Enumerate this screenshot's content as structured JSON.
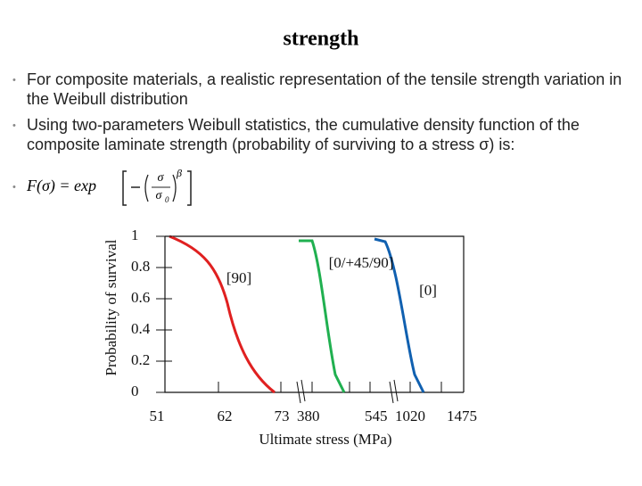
{
  "title": "strength",
  "bullets": [
    [
      "For composite materials, a realistic representation of the tensile strength variation in",
      "the Weibull distribution"
    ],
    [
      "Using two-parameters Weibull statistics, the cumulative density function of the",
      "composite laminate strength (probability of surviving to a stress σ) is:"
    ]
  ],
  "formula": {
    "lhs": "F(σ) = exp",
    "numerator": "σ",
    "denominator": "σ",
    "denominator_sub": "0",
    "exponent": "β"
  },
  "chart_data": {
    "type": "line",
    "ylabel": "Probability of survival",
    "xlabel": "Ultimate stress (MPa)",
    "ylim": [
      0,
      1
    ],
    "yticks": [
      0,
      0.2,
      0.4,
      0.6,
      0.8,
      1
    ],
    "x_tick_labels": [
      "51",
      "62",
      "73  380",
      "545  1020",
      "1475"
    ],
    "curve_labels": [
      "[90]",
      "[0/+45/90]",
      "[0]"
    ]
  }
}
